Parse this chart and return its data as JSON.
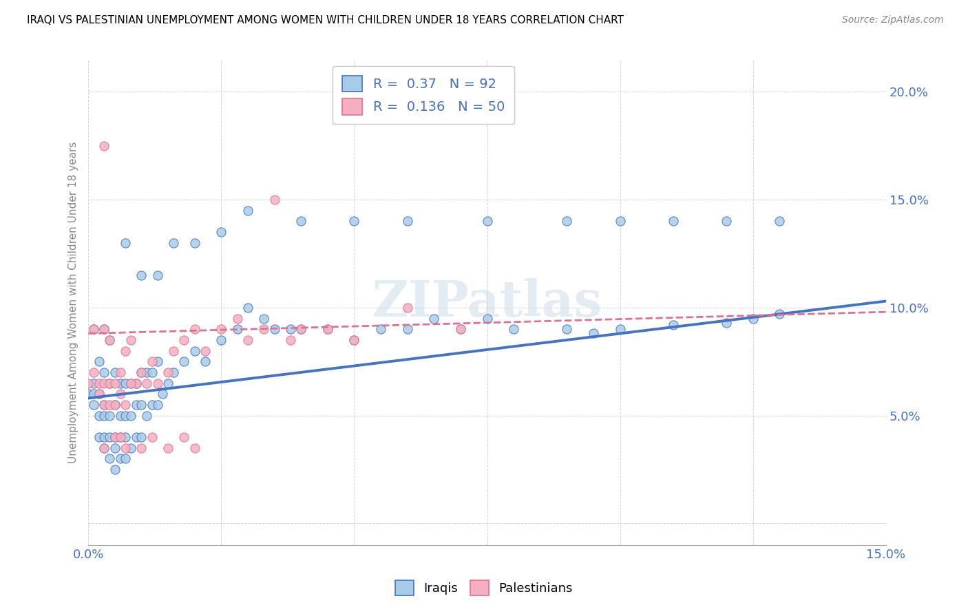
{
  "title": "IRAQI VS PALESTINIAN UNEMPLOYMENT AMONG WOMEN WITH CHILDREN UNDER 18 YEARS CORRELATION CHART",
  "source": "Source: ZipAtlas.com",
  "ylabel": "Unemployment Among Women with Children Under 18 years",
  "xlim": [
    0.0,
    0.15
  ],
  "ylim": [
    -0.01,
    0.215
  ],
  "xticks": [
    0.0,
    0.025,
    0.05,
    0.075,
    0.1,
    0.125,
    0.15
  ],
  "yticks": [
    0.0,
    0.05,
    0.1,
    0.15,
    0.2
  ],
  "xtick_labels": [
    "0.0%",
    "",
    "",
    "",
    "",
    "",
    "15.0%"
  ],
  "ytick_labels": [
    "",
    "5.0%",
    "10.0%",
    "15.0%",
    "20.0%"
  ],
  "R_iraqis": 0.37,
  "N_iraqis": 92,
  "R_palestinians": 0.136,
  "N_palestinians": 50,
  "iraqis_color": "#a8cce8",
  "palestinians_color": "#f4b0c0",
  "trendline_iraqis_color": "#4472c4",
  "trendline_palestinians_color": "#e07090",
  "watermark": "ZIPatlas",
  "trendline_iraqis_x0": 0.0,
  "trendline_iraqis_y0": 0.058,
  "trendline_iraqis_x1": 0.15,
  "trendline_iraqis_y1": 0.103,
  "trendline_pal_x0": 0.0,
  "trendline_pal_y0": 0.088,
  "trendline_pal_x1": 0.15,
  "trendline_pal_y1": 0.098,
  "iraqis_x": [
    0.0,
    0.001,
    0.001,
    0.001,
    0.001,
    0.002,
    0.002,
    0.002,
    0.002,
    0.003,
    0.003,
    0.003,
    0.003,
    0.003,
    0.003,
    0.004,
    0.004,
    0.004,
    0.004,
    0.004,
    0.005,
    0.005,
    0.005,
    0.005,
    0.005,
    0.006,
    0.006,
    0.006,
    0.006,
    0.007,
    0.007,
    0.007,
    0.007,
    0.008,
    0.008,
    0.008,
    0.009,
    0.009,
    0.009,
    0.01,
    0.01,
    0.01,
    0.011,
    0.011,
    0.012,
    0.012,
    0.013,
    0.013,
    0.014,
    0.015,
    0.016,
    0.018,
    0.02,
    0.022,
    0.025,
    0.028,
    0.03,
    0.033,
    0.035,
    0.038,
    0.04,
    0.045,
    0.05,
    0.055,
    0.06,
    0.065,
    0.07,
    0.075,
    0.08,
    0.09,
    0.095,
    0.1,
    0.11,
    0.12,
    0.125,
    0.13,
    0.007,
    0.01,
    0.013,
    0.016,
    0.02,
    0.025,
    0.03,
    0.04,
    0.05,
    0.06,
    0.075,
    0.09,
    0.1,
    0.11,
    0.12,
    0.13
  ],
  "iraqis_y": [
    0.06,
    0.055,
    0.06,
    0.065,
    0.09,
    0.04,
    0.05,
    0.06,
    0.075,
    0.035,
    0.04,
    0.05,
    0.055,
    0.07,
    0.09,
    0.03,
    0.04,
    0.05,
    0.065,
    0.085,
    0.025,
    0.035,
    0.04,
    0.055,
    0.07,
    0.03,
    0.04,
    0.05,
    0.065,
    0.03,
    0.04,
    0.05,
    0.065,
    0.035,
    0.05,
    0.065,
    0.04,
    0.055,
    0.065,
    0.04,
    0.055,
    0.07,
    0.05,
    0.07,
    0.055,
    0.07,
    0.055,
    0.075,
    0.06,
    0.065,
    0.07,
    0.075,
    0.08,
    0.075,
    0.085,
    0.09,
    0.1,
    0.095,
    0.09,
    0.09,
    0.09,
    0.09,
    0.085,
    0.09,
    0.09,
    0.095,
    0.09,
    0.095,
    0.09,
    0.09,
    0.088,
    0.09,
    0.092,
    0.093,
    0.095,
    0.097,
    0.13,
    0.115,
    0.115,
    0.13,
    0.13,
    0.135,
    0.145,
    0.14,
    0.14,
    0.14,
    0.14,
    0.14,
    0.14,
    0.14,
    0.14,
    0.14
  ],
  "palestinians_x": [
    0.0,
    0.001,
    0.001,
    0.002,
    0.002,
    0.003,
    0.003,
    0.003,
    0.004,
    0.004,
    0.004,
    0.005,
    0.005,
    0.006,
    0.006,
    0.007,
    0.007,
    0.008,
    0.009,
    0.01,
    0.011,
    0.012,
    0.013,
    0.015,
    0.016,
    0.018,
    0.02,
    0.022,
    0.025,
    0.028,
    0.03,
    0.033,
    0.035,
    0.038,
    0.04,
    0.045,
    0.05,
    0.06,
    0.07,
    0.003,
    0.005,
    0.007,
    0.01,
    0.012,
    0.015,
    0.018,
    0.02,
    0.008,
    0.003,
    0.006
  ],
  "palestinians_y": [
    0.065,
    0.07,
    0.09,
    0.06,
    0.065,
    0.055,
    0.065,
    0.09,
    0.055,
    0.065,
    0.085,
    0.055,
    0.065,
    0.06,
    0.07,
    0.055,
    0.08,
    0.085,
    0.065,
    0.07,
    0.065,
    0.075,
    0.065,
    0.07,
    0.08,
    0.085,
    0.09,
    0.08,
    0.09,
    0.095,
    0.085,
    0.09,
    0.15,
    0.085,
    0.09,
    0.09,
    0.085,
    0.1,
    0.09,
    0.035,
    0.04,
    0.035,
    0.035,
    0.04,
    0.035,
    0.04,
    0.035,
    0.065,
    0.175,
    0.04
  ]
}
